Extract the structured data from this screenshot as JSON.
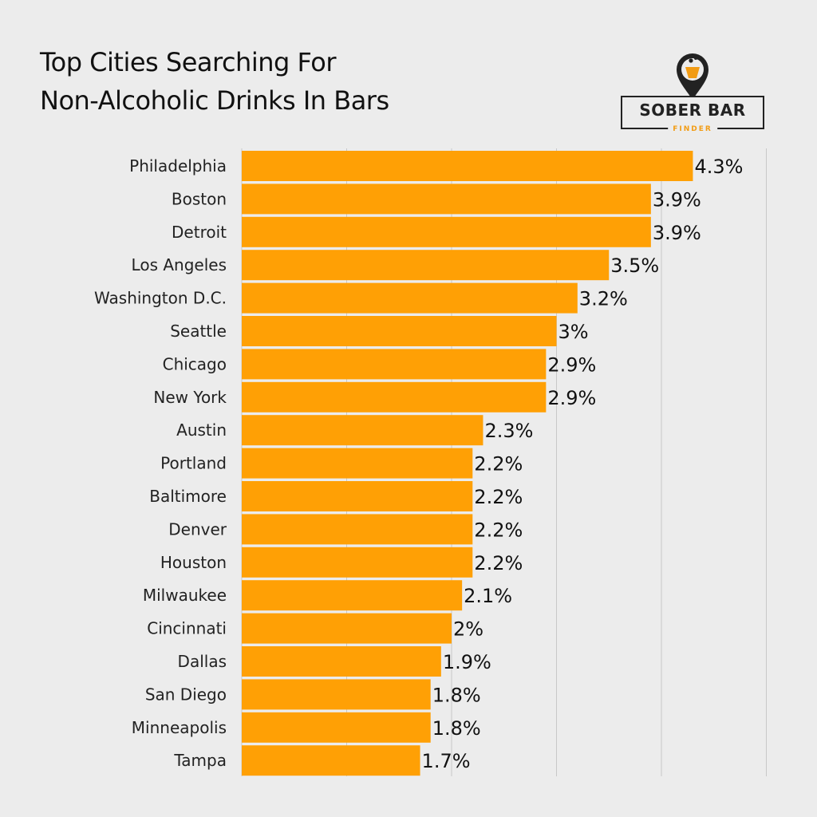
{
  "header": {
    "title_line1": "Top Cities Searching For",
    "title_line2": "Non-Alcoholic Drinks In Bars"
  },
  "logo": {
    "name": "SOBER BAR",
    "sub": "FINDER",
    "icon": "map-pin-glass-icon",
    "accent_color": "#f29c14"
  },
  "colors": {
    "bar": "#ffa005",
    "gridline": "#c8c8c8",
    "background": "#ececec"
  },
  "chart_data": {
    "type": "bar",
    "orientation": "horizontal",
    "title": "Top Cities Searching For Non-Alcoholic Drinks In Bars",
    "categories": [
      "Philadelphia",
      "Boston",
      "Detroit",
      "Los Angeles",
      "Washington D.C.",
      "Seattle",
      "Chicago",
      "New York",
      "Austin",
      "Portland",
      "Baltimore",
      "Denver",
      "Houston",
      "Milwaukee",
      "Cincinnati",
      "Dallas",
      "San Diego",
      "Minneapolis",
      "Tampa"
    ],
    "values": [
      4.3,
      3.9,
      3.9,
      3.5,
      3.2,
      3.0,
      2.9,
      2.9,
      2.3,
      2.2,
      2.2,
      2.2,
      2.2,
      2.1,
      2.0,
      1.9,
      1.8,
      1.8,
      1.7
    ],
    "value_labels": [
      "4.3%",
      "3.9%",
      "3.9%",
      "3.5%",
      "3.2%",
      "3%",
      "2.9%",
      "2.9%",
      "2.3%",
      "2.2%",
      "2.2%",
      "2.2%",
      "2.2%",
      "2.1%",
      "2%",
      "1.9%",
      "1.8%",
      "1.8%",
      "1.7%"
    ],
    "unit": "%",
    "xlim": [
      0,
      5
    ],
    "grid": true,
    "xlabel": "",
    "ylabel": ""
  }
}
